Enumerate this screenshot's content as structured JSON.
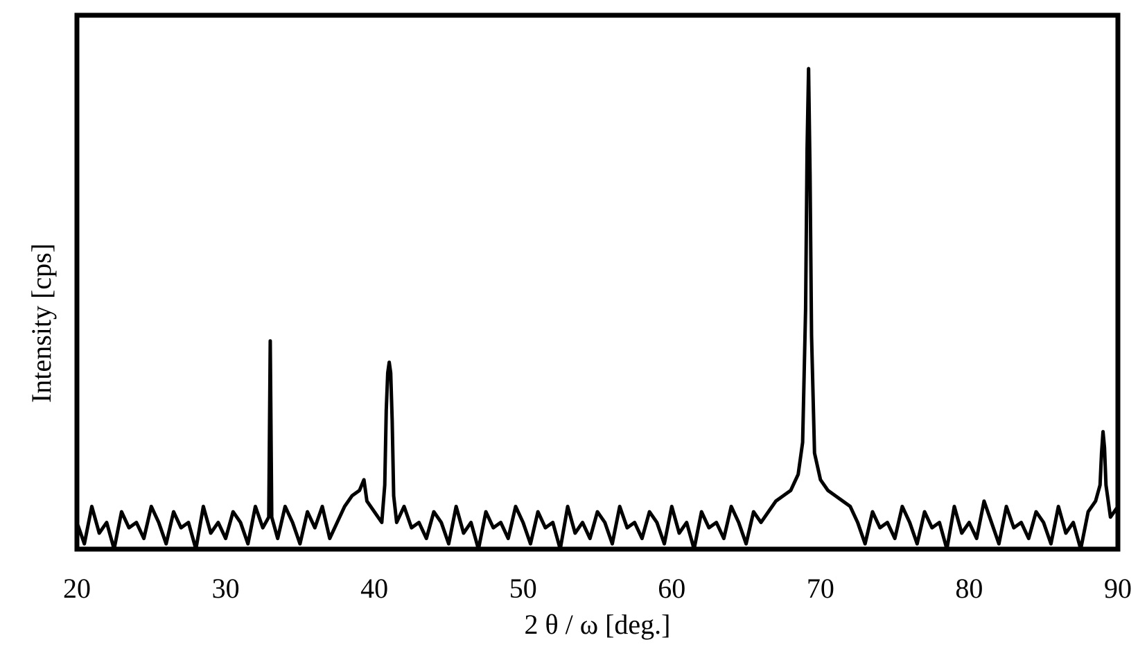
{
  "chart_data": {
    "type": "line",
    "xlabel": "2 θ / ω [deg.]",
    "ylabel": "Intensity [cps]",
    "x": [
      20,
      20.5,
      21,
      21.5,
      22,
      22.5,
      23,
      23.5,
      24,
      24.5,
      25,
      25.5,
      26,
      26.5,
      27,
      27.5,
      28,
      28.5,
      29,
      29.5,
      30,
      30.5,
      31,
      31.5,
      32,
      32.5,
      32.9,
      33,
      33.1,
      33.5,
      34,
      34.5,
      35,
      35.5,
      36,
      36.5,
      37,
      37.5,
      38,
      38.5,
      39,
      39.3,
      39.5,
      40,
      40.5,
      40.7,
      40.8,
      40.9,
      41,
      41.1,
      41.2,
      41.3,
      41.5,
      42,
      42.5,
      43,
      43.5,
      44,
      44.5,
      45,
      45.5,
      46,
      46.5,
      47,
      47.5,
      48,
      48.5,
      49,
      49.5,
      50,
      50.5,
      51,
      51.5,
      52,
      52.5,
      53,
      53.5,
      54,
      54.5,
      55,
      55.5,
      56,
      56.5,
      57,
      57.5,
      58,
      58.5,
      59,
      59.5,
      60,
      60.5,
      61,
      61.5,
      62,
      62.5,
      63,
      63.5,
      64,
      64.5,
      65,
      65.5,
      66,
      66.5,
      67,
      67.5,
      68,
      68.5,
      68.8,
      69,
      69.1,
      69.2,
      69.3,
      69.4,
      69.6,
      70,
      70.5,
      71,
      71.5,
      72,
      72.5,
      73,
      73.5,
      74,
      74.5,
      75,
      75.5,
      76,
      76.5,
      77,
      77.5,
      78,
      78.5,
      79,
      79.5,
      80,
      80.5,
      81,
      81.5,
      82,
      82.5,
      83,
      83.5,
      84,
      84.5,
      85,
      85.5,
      86,
      86.5,
      87,
      87.5,
      88,
      88.5,
      88.8,
      88.9,
      89,
      89.1,
      89.2,
      89.5,
      90
    ],
    "series": [
      {
        "color": "#000000",
        "values": [
          5,
          1,
          8,
          3,
          5,
          0,
          7,
          4,
          5,
          2,
          8,
          5,
          1,
          7,
          4,
          5,
          0,
          8,
          3,
          5,
          2,
          7,
          5,
          1,
          8,
          4,
          6,
          39,
          6,
          2,
          8,
          5,
          1,
          7,
          4,
          8,
          2,
          5,
          8,
          10,
          11,
          13,
          9,
          7,
          5,
          12,
          26,
          33,
          35,
          33,
          24,
          10,
          5,
          8,
          4,
          5,
          2,
          7,
          5,
          1,
          8,
          3,
          5,
          0,
          7,
          4,
          5,
          2,
          8,
          5,
          1,
          7,
          4,
          5,
          0,
          8,
          3,
          5,
          2,
          7,
          5,
          1,
          8,
          4,
          5,
          2,
          7,
          5,
          1,
          8,
          3,
          5,
          0,
          7,
          4,
          5,
          2,
          8,
          5,
          1,
          7,
          5,
          7,
          9,
          10,
          11,
          14,
          20,
          45,
          75,
          90,
          70,
          40,
          18,
          13,
          11,
          10,
          9,
          8,
          5,
          1,
          7,
          4,
          5,
          2,
          8,
          5,
          1,
          7,
          4,
          5,
          0,
          8,
          3,
          5,
          2,
          9,
          5,
          1,
          8,
          4,
          5,
          2,
          7,
          5,
          1,
          8,
          3,
          5,
          0,
          7,
          9,
          12,
          18,
          22,
          19,
          12,
          6,
          8
        ]
      }
    ],
    "xlim": [
      20,
      90
    ],
    "ylim": [
      0,
      100
    ],
    "xticks": [
      20,
      30,
      40,
      50,
      60,
      70,
      80,
      90
    ]
  }
}
